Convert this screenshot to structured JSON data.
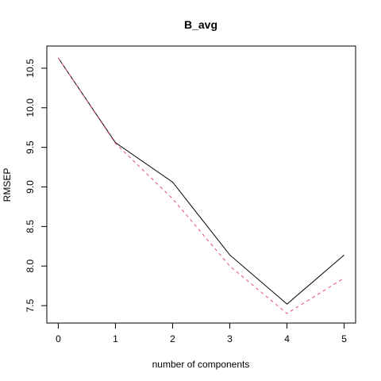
{
  "chart_data": {
    "type": "line",
    "title": "B_avg",
    "xlabel": "number of components",
    "ylabel": "RMSEP",
    "x": [
      0,
      1,
      2,
      3,
      4,
      5
    ],
    "xlim": [
      -0.2,
      5.2
    ],
    "ylim": [
      7.28,
      10.78
    ],
    "x_ticks": [
      "0",
      "1",
      "2",
      "3",
      "4",
      "5"
    ],
    "y_ticks": [
      "7.5",
      "8.0",
      "8.5",
      "9.0",
      "9.5",
      "10.0",
      "10.5"
    ],
    "y_tick_values": [
      7.5,
      8.0,
      8.5,
      9.0,
      9.5,
      10.0,
      10.5
    ],
    "grid": false,
    "legend": "none",
    "series": [
      {
        "values": [
          10.63,
          9.56,
          9.06,
          8.14,
          7.52,
          8.14
        ],
        "color": "#000000",
        "style": "solid"
      },
      {
        "values": [
          10.63,
          9.55,
          8.85,
          8.0,
          7.4,
          7.85
        ],
        "color": "#DF536B",
        "style": "dashed"
      }
    ]
  }
}
